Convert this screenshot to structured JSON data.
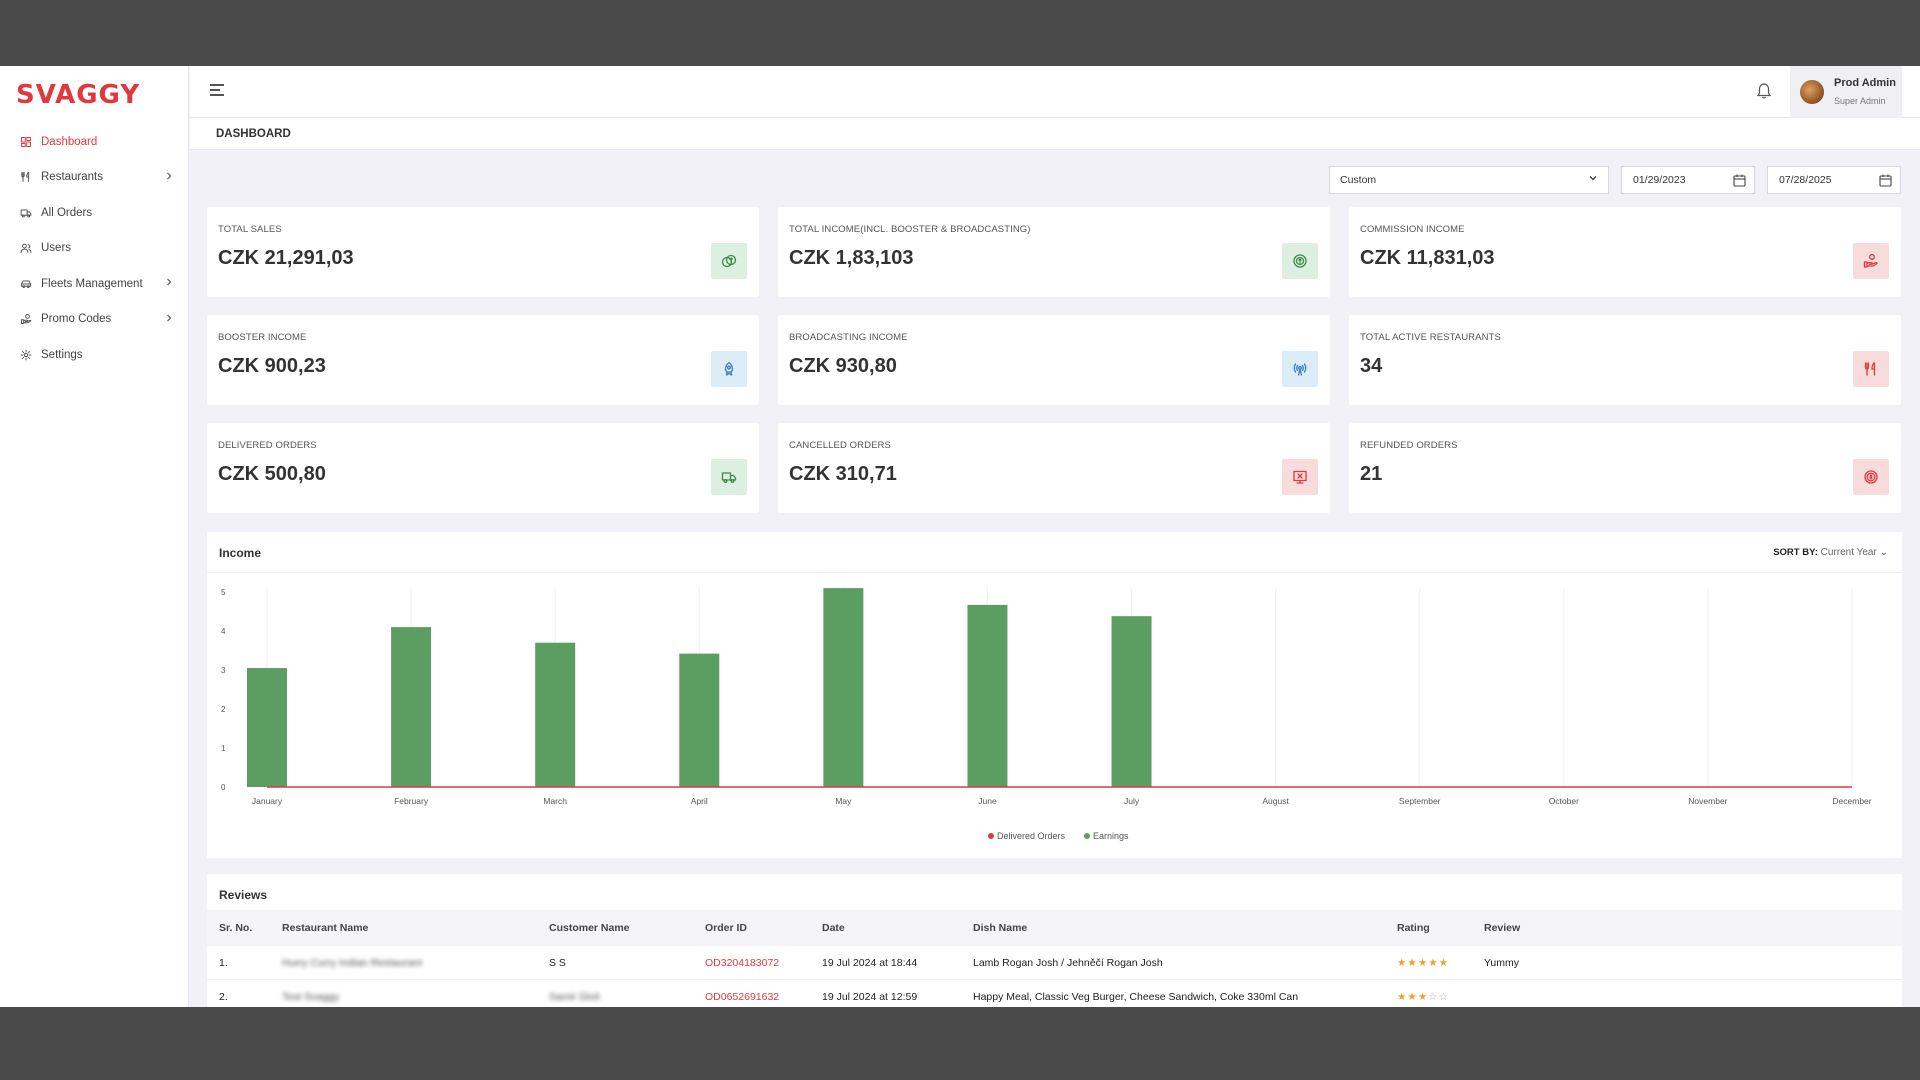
{
  "brand": {
    "logo_text": "SVAGGY",
    "accent": "#e0383e"
  },
  "sidebar": {
    "items": [
      {
        "label": "Dashboard",
        "icon": "dashboard-icon",
        "active": true,
        "has_children": false
      },
      {
        "label": "Restaurants",
        "icon": "utensils-icon",
        "active": false,
        "has_children": true
      },
      {
        "label": "All Orders",
        "icon": "truck-icon",
        "active": false,
        "has_children": false
      },
      {
        "label": "Users",
        "icon": "users-icon",
        "active": false,
        "has_children": false
      },
      {
        "label": "Fleets Management",
        "icon": "car-icon",
        "active": false,
        "has_children": true
      },
      {
        "label": "Promo Codes",
        "icon": "promo-icon",
        "active": false,
        "has_children": true
      },
      {
        "label": "Settings",
        "icon": "gear-icon",
        "active": false,
        "has_children": false
      }
    ]
  },
  "header": {
    "user_name": "Prod Admin",
    "user_role": "Super Admin"
  },
  "page": {
    "title": "DASHBOARD"
  },
  "filters": {
    "range": "Custom",
    "start_date": "01/29/2023",
    "end_date": "07/28/2025"
  },
  "stats": [
    {
      "label": "TOTAL SALES",
      "value": "CZK 21,291,03",
      "icon": "coins-icon",
      "tone": "green"
    },
    {
      "label": "TOTAL INCOME(INCL. BOOSTER & BROADCASTING)",
      "value": "CZK 1,83,103",
      "icon": "money-icon",
      "tone": "green"
    },
    {
      "label": "COMMISSION INCOME",
      "value": "CZK 11,831,03",
      "icon": "hand-coins-icon",
      "tone": "red"
    },
    {
      "label": "BOOSTER INCOME",
      "value": "CZK 900,23",
      "icon": "rocket-icon",
      "tone": "blue"
    },
    {
      "label": "BROADCASTING INCOME",
      "value": "CZK 930,80",
      "icon": "broadcast-icon",
      "tone": "blue"
    },
    {
      "label": "TOTAL ACTIVE RESTAURANTS",
      "value": "34",
      "icon": "utensils-icon",
      "tone": "red"
    },
    {
      "label": "DELIVERED ORDERS",
      "value": "CZK 500,80",
      "icon": "delivery-truck-icon",
      "tone": "green"
    },
    {
      "label": "CANCELLED ORDERS",
      "value": "CZK 310,71",
      "icon": "cancel-order-icon",
      "tone": "red"
    },
    {
      "label": "REFUNDED ORDERS",
      "value": "21",
      "icon": "refund-icon",
      "tone": "red"
    }
  ],
  "income": {
    "title": "Income",
    "sort_by_label": "SORT BY:",
    "sort_by_value": "Current Year",
    "chart_data": {
      "type": "bar",
      "categories": [
        "January",
        "February",
        "March",
        "April",
        "May",
        "June",
        "July",
        "August",
        "September",
        "October",
        "November",
        "December"
      ],
      "series": [
        {
          "name": "Earnings",
          "kind": "bar",
          "color": "#5c9e62",
          "values": [
            3.05,
            4.1,
            3.7,
            3.42,
            5.1,
            4.67,
            4.38,
            0,
            0,
            0,
            0,
            0
          ]
        },
        {
          "name": "Delivered Orders",
          "kind": "line",
          "color": "#e0383e",
          "values": [
            0,
            0,
            0,
            0,
            0,
            0,
            0,
            0,
            0,
            0,
            0,
            0
          ]
        }
      ],
      "ylim": [
        0,
        5
      ],
      "yticks": [
        0,
        1,
        2,
        3,
        4,
        5
      ],
      "grid": true,
      "legend": "bottom-center"
    }
  },
  "reviews": {
    "title": "Reviews",
    "columns": [
      "Sr. No.",
      "Restaurant Name",
      "Customer Name",
      "Order ID",
      "Date",
      "Dish Name",
      "Rating",
      "Review"
    ],
    "rows": [
      {
        "sr": "1.",
        "restaurant": "Hurry Curry Indian Restaurant",
        "customer": "S S",
        "order_id": "OD3204183072",
        "date": "19 Jul 2024 at 18:44",
        "dish": "Lamb Rogan Josh / Jehněčí Rogan Josh",
        "rating": 5,
        "review": "Yummy"
      },
      {
        "sr": "2.",
        "restaurant": "Test Svaggy",
        "customer": "Samir Dixit",
        "order_id": "OD0652691632",
        "date": "19 Jul 2024 at 12:59",
        "dish": "Happy Meal, Classic Veg Burger, Cheese Sandwich, Coke 330ml Can",
        "rating": 3,
        "review": ""
      }
    ]
  }
}
